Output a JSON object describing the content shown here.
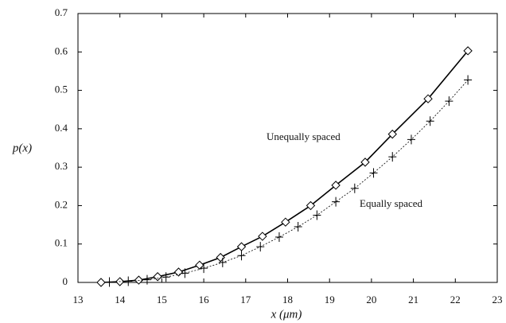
{
  "chart_data": {
    "type": "line",
    "xlabel": "x (μm)",
    "ylabel": "p(x)",
    "xlim": [
      13,
      23
    ],
    "xticks": [
      13,
      14,
      15,
      16,
      17,
      18,
      19,
      20,
      21,
      22,
      23
    ],
    "ylim": [
      0,
      0.7
    ],
    "yticks": [
      0,
      0.1,
      0.2,
      0.3,
      0.4,
      0.5,
      0.6,
      0.7
    ],
    "series": [
      {
        "name": "Unequally spaced",
        "color": "#000000",
        "marker": "diamond",
        "line": "solid",
        "x": [
          13.55,
          14.0,
          14.45,
          14.9,
          15.4,
          15.9,
          16.4,
          16.9,
          17.4,
          17.95,
          18.55,
          19.15,
          19.85,
          20.5,
          21.35,
          22.3
        ],
        "values": [
          0,
          0.002,
          0.006,
          0.015,
          0.027,
          0.045,
          0.065,
          0.093,
          0.12,
          0.157,
          0.2,
          0.253,
          0.313,
          0.386,
          0.478,
          0.603
        ]
      },
      {
        "name": "Equally spaced",
        "color": "#000000",
        "marker": "plus",
        "line": "dotted",
        "x": [
          13.75,
          14.2,
          14.65,
          15.1,
          15.55,
          16.0,
          16.45,
          16.9,
          17.35,
          17.8,
          18.25,
          18.7,
          19.15,
          19.6,
          20.05,
          20.5,
          20.95,
          21.4,
          21.85,
          22.3
        ],
        "values": [
          0.001,
          0.003,
          0.007,
          0.014,
          0.024,
          0.037,
          0.052,
          0.07,
          0.093,
          0.118,
          0.145,
          0.175,
          0.21,
          0.245,
          0.285,
          0.327,
          0.372,
          0.42,
          0.472,
          0.527
        ]
      }
    ]
  }
}
